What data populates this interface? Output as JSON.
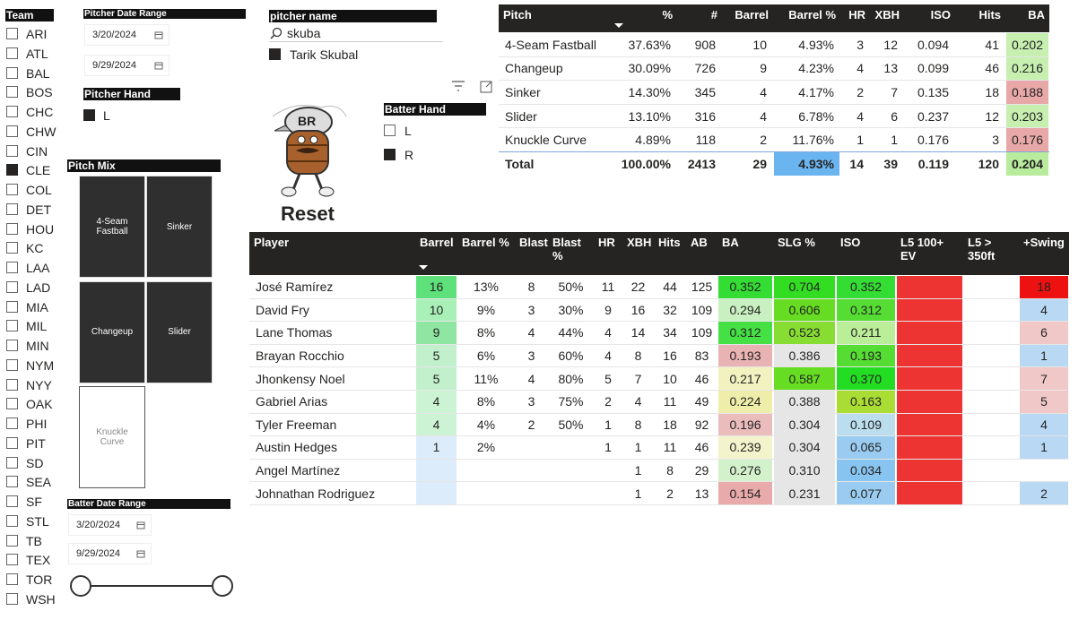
{
  "team_filter": {
    "title": "Team",
    "options": [
      {
        "label": "ARI"
      },
      {
        "label": "ATL"
      },
      {
        "label": "BAL"
      },
      {
        "label": "BOS"
      },
      {
        "label": "CHC"
      },
      {
        "label": "CHW"
      },
      {
        "label": "CIN"
      },
      {
        "label": "CLE",
        "checked": true
      },
      {
        "label": "COL"
      },
      {
        "label": "DET"
      },
      {
        "label": "HOU"
      },
      {
        "label": "KC"
      },
      {
        "label": "LAA"
      },
      {
        "label": "LAD"
      },
      {
        "label": "MIA"
      },
      {
        "label": "MIL"
      },
      {
        "label": "MIN"
      },
      {
        "label": "NYM"
      },
      {
        "label": "NYY"
      },
      {
        "label": "OAK"
      },
      {
        "label": "PHI"
      },
      {
        "label": "PIT"
      },
      {
        "label": "SD"
      },
      {
        "label": "SEA"
      },
      {
        "label": "SF"
      },
      {
        "label": "STL"
      },
      {
        "label": "TB"
      },
      {
        "label": "TEX"
      },
      {
        "label": "TOR"
      },
      {
        "label": "WSH"
      }
    ]
  },
  "pitcher_date_range": {
    "title": "Pitcher Date Range",
    "start": "3/20/2024",
    "end": "9/29/2024"
  },
  "pitcher_hand": {
    "title": "Pitcher Hand",
    "options": [
      {
        "label": "L",
        "checked": true
      }
    ]
  },
  "pitcher_name": {
    "title": "pitcher name",
    "search": "skuba",
    "options": [
      {
        "label": "Tarik Skubal",
        "checked": true
      }
    ]
  },
  "pitch_mix": {
    "title": "Pitch Mix",
    "tiles": [
      {
        "label": "4-Seam Fastball",
        "selected": true
      },
      {
        "label": "Sinker",
        "selected": true
      },
      {
        "label": "Changeup",
        "selected": true
      },
      {
        "label": "Slider",
        "selected": true
      },
      {
        "label": "Knuckle Curve",
        "selected": false
      }
    ]
  },
  "reset": {
    "label": "Reset"
  },
  "batter_hand": {
    "title": "Batter Hand",
    "options": [
      {
        "label": "L"
      },
      {
        "label": "R",
        "checked": true
      }
    ]
  },
  "batter_date_range": {
    "title": "Batter Date Range",
    "start": "3/20/2024",
    "end": "9/29/2024"
  },
  "pitch_table": {
    "headers": [
      "Pitch",
      "%",
      "#",
      "Barrel",
      "Barrel %",
      "HR",
      "XBH",
      "ISO",
      "Hits",
      "BA"
    ],
    "rows": [
      [
        "4-Seam Fastball",
        "37.63%",
        "908",
        "10",
        "4.93%",
        "3",
        "12",
        "0.094",
        "41",
        "0.202"
      ],
      [
        "Changeup",
        "30.09%",
        "726",
        "9",
        "4.23%",
        "4",
        "13",
        "0.099",
        "46",
        "0.216"
      ],
      [
        "Sinker",
        "14.30%",
        "345",
        "4",
        "4.17%",
        "2",
        "7",
        "0.135",
        "18",
        "0.188"
      ],
      [
        "Slider",
        "13.10%",
        "316",
        "4",
        "6.78%",
        "4",
        "6",
        "0.237",
        "12",
        "0.203"
      ],
      [
        "Knuckle Curve",
        "4.89%",
        "118",
        "2",
        "11.76%",
        "1",
        "1",
        "0.176",
        "3",
        "0.176"
      ]
    ],
    "total": [
      "Total",
      "100.00%",
      "2413",
      "29",
      "4.93%",
      "14",
      "39",
      "0.119",
      "120",
      "0.204"
    ],
    "fills": {
      "9": [
        "#c6efb0",
        "#c6efb0",
        "#e8a8a8",
        "#c6efb0",
        "#e8a8a8"
      ]
    },
    "total_fills": {
      "4": "#6ab4f0",
      "9": "#b8ec9c"
    }
  },
  "player_table": {
    "headers": [
      "Player",
      "Barrel",
      "Barrel %",
      "Blast",
      "Blast %",
      "HR",
      "XBH",
      "Hits",
      "AB",
      "BA",
      "SLG %",
      "ISO",
      "L5 100+ EV",
      "L5 > 350ft",
      "+Swing"
    ],
    "rows": [
      [
        "José Ramírez",
        "16",
        "13%",
        "8",
        "50%",
        "11",
        "22",
        "44",
        "125",
        "0.352",
        "0.704",
        "0.352",
        null,
        null,
        "18"
      ],
      [
        "David Fry",
        "10",
        "9%",
        "3",
        "30%",
        "9",
        "16",
        "32",
        "109",
        "0.294",
        "0.606",
        "0.312",
        null,
        null,
        "4"
      ],
      [
        "Lane Thomas",
        "9",
        "8%",
        "4",
        "44%",
        "4",
        "14",
        "34",
        "109",
        "0.312",
        "0.523",
        "0.211",
        null,
        null,
        "6"
      ],
      [
        "Brayan Rocchio",
        "5",
        "6%",
        "3",
        "60%",
        "4",
        "8",
        "16",
        "83",
        "0.193",
        "0.386",
        "0.193",
        null,
        null,
        "1"
      ],
      [
        "Jhonkensy Noel",
        "5",
        "11%",
        "4",
        "80%",
        "5",
        "7",
        "10",
        "46",
        "0.217",
        "0.587",
        "0.370",
        null,
        null,
        "7"
      ],
      [
        "Gabriel Arias",
        "4",
        "8%",
        "3",
        "75%",
        "2",
        "4",
        "11",
        "49",
        "0.224",
        "0.388",
        "0.163",
        null,
        null,
        "5"
      ],
      [
        "Tyler Freeman",
        "4",
        "4%",
        "2",
        "50%",
        "1",
        "8",
        "18",
        "92",
        "0.196",
        "0.304",
        "0.109",
        null,
        null,
        "4"
      ],
      [
        "Austin Hedges",
        "1",
        "2%",
        null,
        null,
        "1",
        "1",
        "11",
        "46",
        "0.239",
        "0.304",
        "0.065",
        null,
        null,
        "1"
      ],
      [
        "Angel Martínez",
        null,
        null,
        null,
        null,
        null,
        "1",
        "8",
        "29",
        "0.276",
        "0.310",
        "0.034",
        null,
        null,
        null
      ],
      [
        "Johnathan Rodriguez",
        null,
        null,
        null,
        null,
        null,
        "1",
        "2",
        "13",
        "0.154",
        "0.231",
        "0.077",
        null,
        null,
        "2"
      ]
    ],
    "fills": {
      "1": [
        "#5ee07a",
        "#a8efb8",
        "#8fe6a2",
        "#c2f0cc",
        "#c2f0cc",
        "#cdf3d5",
        "#cdf3d5",
        "#dcecfa",
        "#dcecfa",
        "#dcecfa"
      ],
      "9": [
        "#33dd33",
        "#c8f0c0",
        "#44e044",
        "#eab3b3",
        "#f2f2c0",
        "#eeeeaa",
        "#ebbcbc",
        "#f4f4cc",
        "#d3f2cc",
        "#e8aaaa"
      ],
      "10": [
        "#33dd22",
        "#66dd22",
        "#88dd33",
        "#e6e6e6",
        "#66dd22",
        "#e6e6e6",
        "#e6e6e6",
        "#e6e6e6",
        "#e6e6e6",
        "#e6e6e6"
      ],
      "11": [
        "#33dd33",
        "#55dd33",
        "#bbee99",
        "#55dd33",
        "#22dd22",
        "#aadd33",
        "#bbddee",
        "#99ccf0",
        "#88c4f0",
        "#99ccf0"
      ],
      "12": [
        "#ee3333",
        "#ee3333",
        "#ee3333",
        "#ee3333",
        "#ee3333",
        "#ee3333",
        "#ee3333",
        "#ee3333",
        "#ee3333",
        "#ee3333"
      ],
      "14": [
        "#ee1111",
        "#b8d8f4",
        "#f0c8c8",
        "#b8d8f4",
        "#f0c8c8",
        "#f0c8c8",
        "#b8d8f4",
        "#b8d8f4",
        null,
        "#b8d8f4"
      ]
    }
  }
}
